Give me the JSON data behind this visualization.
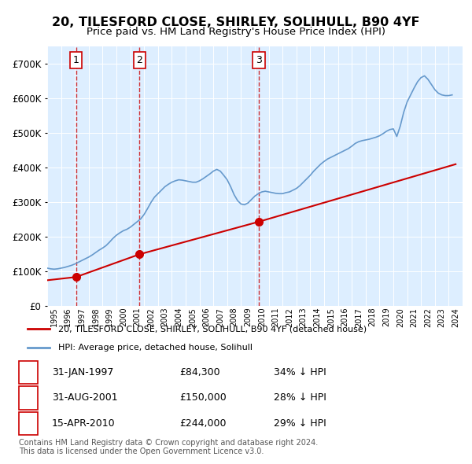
{
  "title": "20, TILESFORD CLOSE, SHIRLEY, SOLIHULL, B90 4YF",
  "subtitle": "Price paid vs. HM Land Registry's House Price Index (HPI)",
  "ylabel": "",
  "ylim": [
    0,
    750000
  ],
  "yticks": [
    0,
    100000,
    200000,
    300000,
    400000,
    500000,
    600000,
    700000
  ],
  "ytick_labels": [
    "£0",
    "£100K",
    "£200K",
    "£300K",
    "£400K",
    "£500K",
    "£600K",
    "£700K"
  ],
  "bg_color": "#ddeeff",
  "plot_bg": "#ddeeff",
  "grid_color": "#ffffff",
  "sales": [
    {
      "date": 1997.08,
      "price": 84300,
      "label": "1"
    },
    {
      "date": 2001.67,
      "price": 150000,
      "label": "2"
    },
    {
      "date": 2010.29,
      "price": 244000,
      "label": "3"
    }
  ],
  "vline_dates": [
    1997.08,
    2001.67,
    2010.29
  ],
  "table_rows": [
    {
      "num": "1",
      "date": "31-JAN-1997",
      "price": "£84,300",
      "hpi": "34% ↓ HPI"
    },
    {
      "num": "2",
      "date": "31-AUG-2001",
      "price": "£150,000",
      "hpi": "28% ↓ HPI"
    },
    {
      "num": "3",
      "date": "15-APR-2010",
      "price": "£244,000",
      "hpi": "29% ↓ HPI"
    }
  ],
  "legend_line1": "20, TILESFORD CLOSE, SHIRLEY, SOLIHULL, B90 4YF (detached house)",
  "legend_line2": "HPI: Average price, detached house, Solihull",
  "footer": "Contains HM Land Registry data © Crown copyright and database right 2024.\nThis data is licensed under the Open Government Licence v3.0.",
  "sale_color": "#cc0000",
  "hpi_color": "#6699cc",
  "hpi_data_x": [
    1995.0,
    1995.25,
    1995.5,
    1995.75,
    1996.0,
    1996.25,
    1996.5,
    1996.75,
    1997.0,
    1997.25,
    1997.5,
    1997.75,
    1998.0,
    1998.25,
    1998.5,
    1998.75,
    1999.0,
    1999.25,
    1999.5,
    1999.75,
    2000.0,
    2000.25,
    2000.5,
    2000.75,
    2001.0,
    2001.25,
    2001.5,
    2001.75,
    2002.0,
    2002.25,
    2002.5,
    2002.75,
    2003.0,
    2003.25,
    2003.5,
    2003.75,
    2004.0,
    2004.25,
    2004.5,
    2004.75,
    2005.0,
    2005.25,
    2005.5,
    2005.75,
    2006.0,
    2006.25,
    2006.5,
    2006.75,
    2007.0,
    2007.25,
    2007.5,
    2007.75,
    2008.0,
    2008.25,
    2008.5,
    2008.75,
    2009.0,
    2009.25,
    2009.5,
    2009.75,
    2010.0,
    2010.25,
    2010.5,
    2010.75,
    2011.0,
    2011.25,
    2011.5,
    2011.75,
    2012.0,
    2012.25,
    2012.5,
    2012.75,
    2013.0,
    2013.25,
    2013.5,
    2013.75,
    2014.0,
    2014.25,
    2014.5,
    2014.75,
    2015.0,
    2015.25,
    2015.5,
    2015.75,
    2016.0,
    2016.25,
    2016.5,
    2016.75,
    2017.0,
    2017.25,
    2017.5,
    2017.75,
    2018.0,
    2018.25,
    2018.5,
    2018.75,
    2019.0,
    2019.25,
    2019.5,
    2019.75,
    2020.0,
    2020.25,
    2020.5,
    2020.75,
    2021.0,
    2021.25,
    2021.5,
    2021.75,
    2022.0,
    2022.25,
    2022.5,
    2022.75,
    2023.0,
    2023.25,
    2023.5,
    2023.75,
    2024.0,
    2024.25
  ],
  "hpi_data_y": [
    110000,
    108000,
    107000,
    108000,
    110000,
    112000,
    115000,
    118000,
    122000,
    127000,
    132000,
    137000,
    142000,
    148000,
    155000,
    162000,
    168000,
    175000,
    185000,
    196000,
    205000,
    212000,
    218000,
    222000,
    228000,
    236000,
    244000,
    252000,
    265000,
    282000,
    300000,
    315000,
    325000,
    335000,
    345000,
    352000,
    358000,
    362000,
    365000,
    364000,
    362000,
    360000,
    358000,
    358000,
    362000,
    368000,
    375000,
    382000,
    390000,
    395000,
    390000,
    378000,
    365000,
    345000,
    322000,
    305000,
    295000,
    293000,
    298000,
    308000,
    318000,
    325000,
    330000,
    332000,
    330000,
    328000,
    326000,
    325000,
    325000,
    328000,
    330000,
    335000,
    340000,
    348000,
    358000,
    368000,
    378000,
    390000,
    400000,
    410000,
    418000,
    425000,
    430000,
    435000,
    440000,
    445000,
    450000,
    455000,
    462000,
    470000,
    475000,
    478000,
    480000,
    482000,
    485000,
    488000,
    492000,
    498000,
    505000,
    510000,
    512000,
    490000,
    520000,
    560000,
    590000,
    610000,
    630000,
    648000,
    660000,
    665000,
    655000,
    640000,
    625000,
    615000,
    610000,
    608000,
    608000,
    610000
  ],
  "sale_line_x": [
    1995.0,
    1997.08,
    2001.67,
    2010.29,
    2024.5
  ],
  "sale_line_y": [
    75000,
    84300,
    150000,
    244000,
    410000
  ]
}
